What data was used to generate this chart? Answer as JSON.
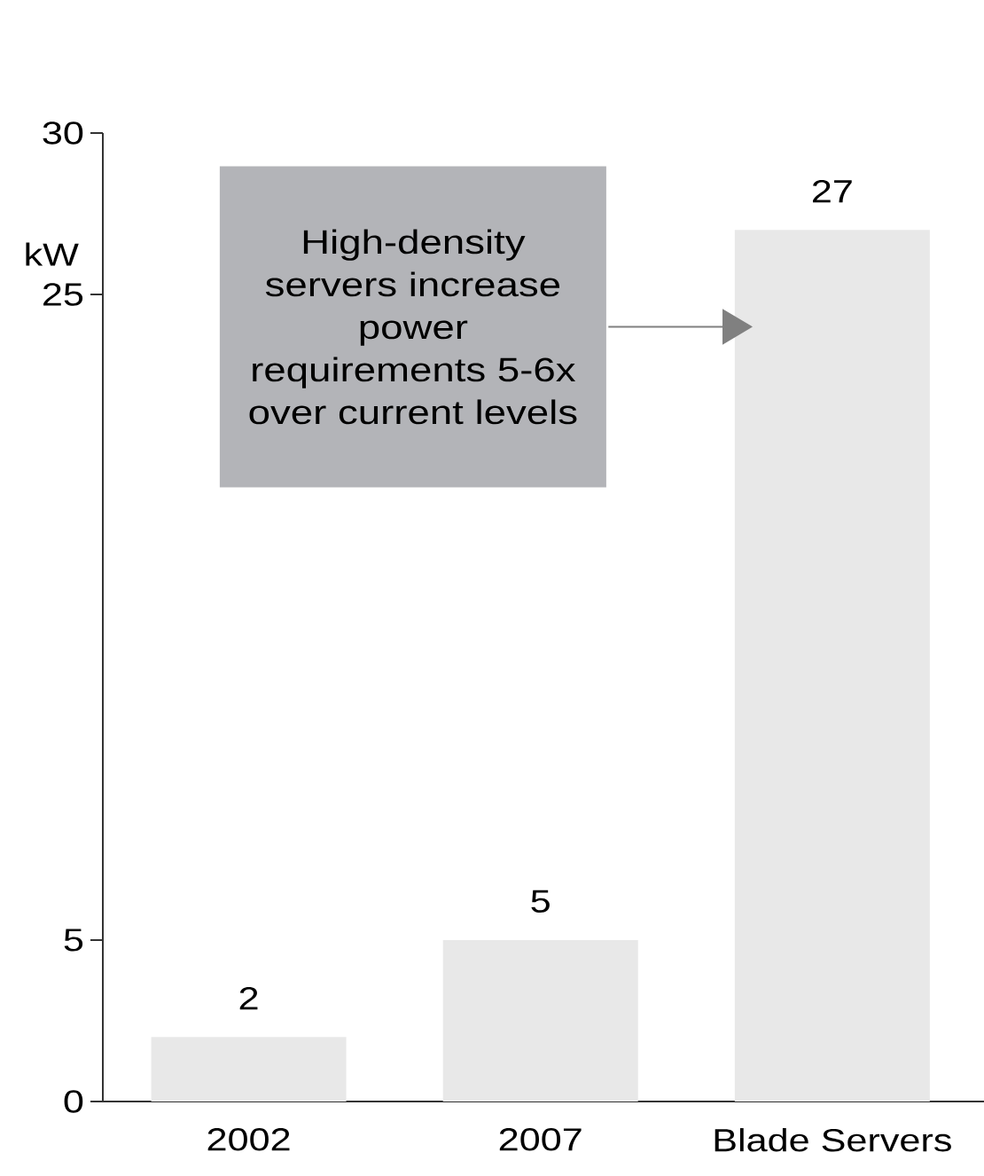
{
  "chart_data": {
    "type": "bar",
    "categories": [
      "2002",
      "2007",
      "Blade Servers"
    ],
    "values": [
      2,
      5,
      27
    ],
    "color": "#e8e8e8",
    "ylabel": "kW",
    "ylim": [
      0,
      30
    ],
    "yticks": [
      0,
      5,
      25,
      30
    ],
    "data_labels": true,
    "annotations": [
      "High-density servers increase power requirements 5-6x over current levels"
    ]
  }
}
